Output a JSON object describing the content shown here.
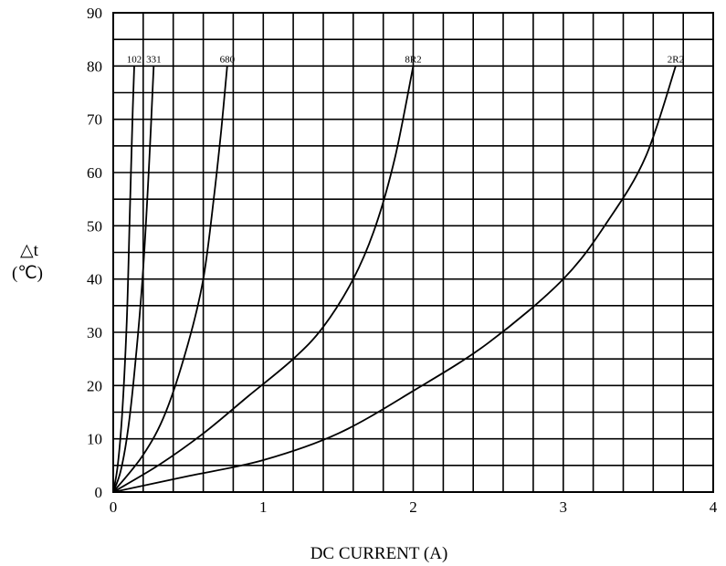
{
  "chart_data": {
    "type": "line",
    "title": "",
    "xlabel": "DC CURRENT (A)",
    "ylabel_lines": [
      "△t",
      "(℃)"
    ],
    "xlim": [
      0,
      4
    ],
    "ylim": [
      0,
      90
    ],
    "x_ticks": [
      0,
      1,
      2,
      3,
      4
    ],
    "y_ticks": [
      0,
      10,
      20,
      30,
      40,
      50,
      60,
      70,
      80,
      90
    ],
    "grid": true,
    "minor_x_step": 0.2,
    "minor_y_step": 5,
    "series": [
      {
        "name": "102",
        "x": [
          0,
          0.03,
          0.06,
          0.09,
          0.11,
          0.13,
          0.14
        ],
        "y": [
          0,
          5,
          15,
          32,
          52,
          72,
          80
        ]
      },
      {
        "name": "331",
        "x": [
          0,
          0.05,
          0.1,
          0.15,
          0.2,
          0.24,
          0.27
        ],
        "y": [
          0,
          4,
          12,
          25,
          42,
          62,
          80
        ]
      },
      {
        "name": "680",
        "x": [
          0,
          0.2,
          0.35,
          0.5,
          0.6,
          0.67,
          0.72,
          0.76
        ],
        "y": [
          0,
          7,
          15,
          28,
          40,
          55,
          68,
          80
        ]
      },
      {
        "name": "8R2",
        "x": [
          0,
          0.3,
          0.6,
          0.9,
          1.2,
          1.4,
          1.6,
          1.75,
          1.88,
          2.0
        ],
        "y": [
          0,
          5,
          11,
          18,
          25,
          31,
          40,
          50,
          63,
          80
        ]
      },
      {
        "name": "2R2",
        "x": [
          0,
          0.5,
          1.0,
          1.5,
          2.0,
          2.5,
          3.0,
          3.3,
          3.55,
          3.75
        ],
        "y": [
          0,
          3,
          6,
          11,
          19,
          28,
          40,
          51,
          63,
          80
        ]
      }
    ]
  }
}
